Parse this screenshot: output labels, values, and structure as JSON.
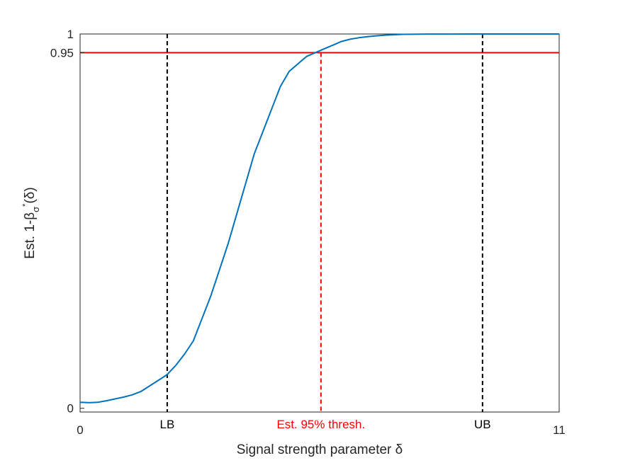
{
  "chart_data": {
    "type": "line",
    "title": "",
    "xlabel": "Signal strength parameter δ",
    "ylabel_parts": {
      "main": "Est. 1-β",
      "sub": "σ",
      "sup": "*",
      "tail": "(δ)"
    },
    "xlim": [
      0,
      11
    ],
    "ylim": [
      -0.01,
      1
    ],
    "x_ticks": [
      {
        "value": 0,
        "label": "0"
      },
      {
        "value": 11,
        "label": "11"
      }
    ],
    "y_ticks": [
      {
        "value": 0,
        "label": "0"
      },
      {
        "value": 0.95,
        "label": "0.95"
      },
      {
        "value": 1,
        "label": "1"
      }
    ],
    "grid": false,
    "legend": "none",
    "colors": {
      "series": "#0072BD",
      "threshold": "#FF0000",
      "bounds": "#000000"
    },
    "threshold_line": {
      "y": 0.95,
      "color": "#FF0000"
    },
    "vertical_lines": [
      {
        "x": 2.0,
        "label": "LB",
        "color": "#000000",
        "style": "dashed"
      },
      {
        "x": 5.53,
        "label": "Est. 95% thresh.",
        "color": "#FF0000",
        "style": "dashed"
      },
      {
        "x": 9.24,
        "label": "UB",
        "color": "#000000",
        "style": "dashed"
      }
    ],
    "series": [
      {
        "x": [
          0,
          0.2,
          0.4,
          0.6,
          0.8,
          1.0,
          1.2,
          1.4,
          1.6,
          1.8,
          2.0,
          2.2,
          2.4,
          2.6,
          2.8,
          3.0,
          3.2,
          3.4,
          3.6,
          3.8,
          4.0,
          4.2,
          4.4,
          4.6,
          4.8,
          5.0,
          5.2,
          5.4,
          5.6,
          5.8,
          6.0,
          6.2,
          6.4,
          6.6,
          6.8,
          7.0,
          7.2,
          7.4,
          7.6,
          7.8,
          8.0,
          8.5,
          9.0,
          9.5,
          10.0,
          10.5,
          11.0
        ],
        "y": [
          0.016,
          0.015,
          0.016,
          0.02,
          0.025,
          0.03,
          0.036,
          0.045,
          0.06,
          0.075,
          0.09,
          0.115,
          0.145,
          0.18,
          0.24,
          0.3,
          0.37,
          0.44,
          0.52,
          0.6,
          0.68,
          0.74,
          0.8,
          0.86,
          0.9,
          0.92,
          0.94,
          0.95,
          0.96,
          0.97,
          0.98,
          0.986,
          0.99,
          0.993,
          0.995,
          0.997,
          0.998,
          0.999,
          0.9993,
          0.9996,
          0.9998,
          0.9999,
          1.0,
          1.0,
          1.0,
          1.0,
          1.0
        ]
      }
    ]
  }
}
